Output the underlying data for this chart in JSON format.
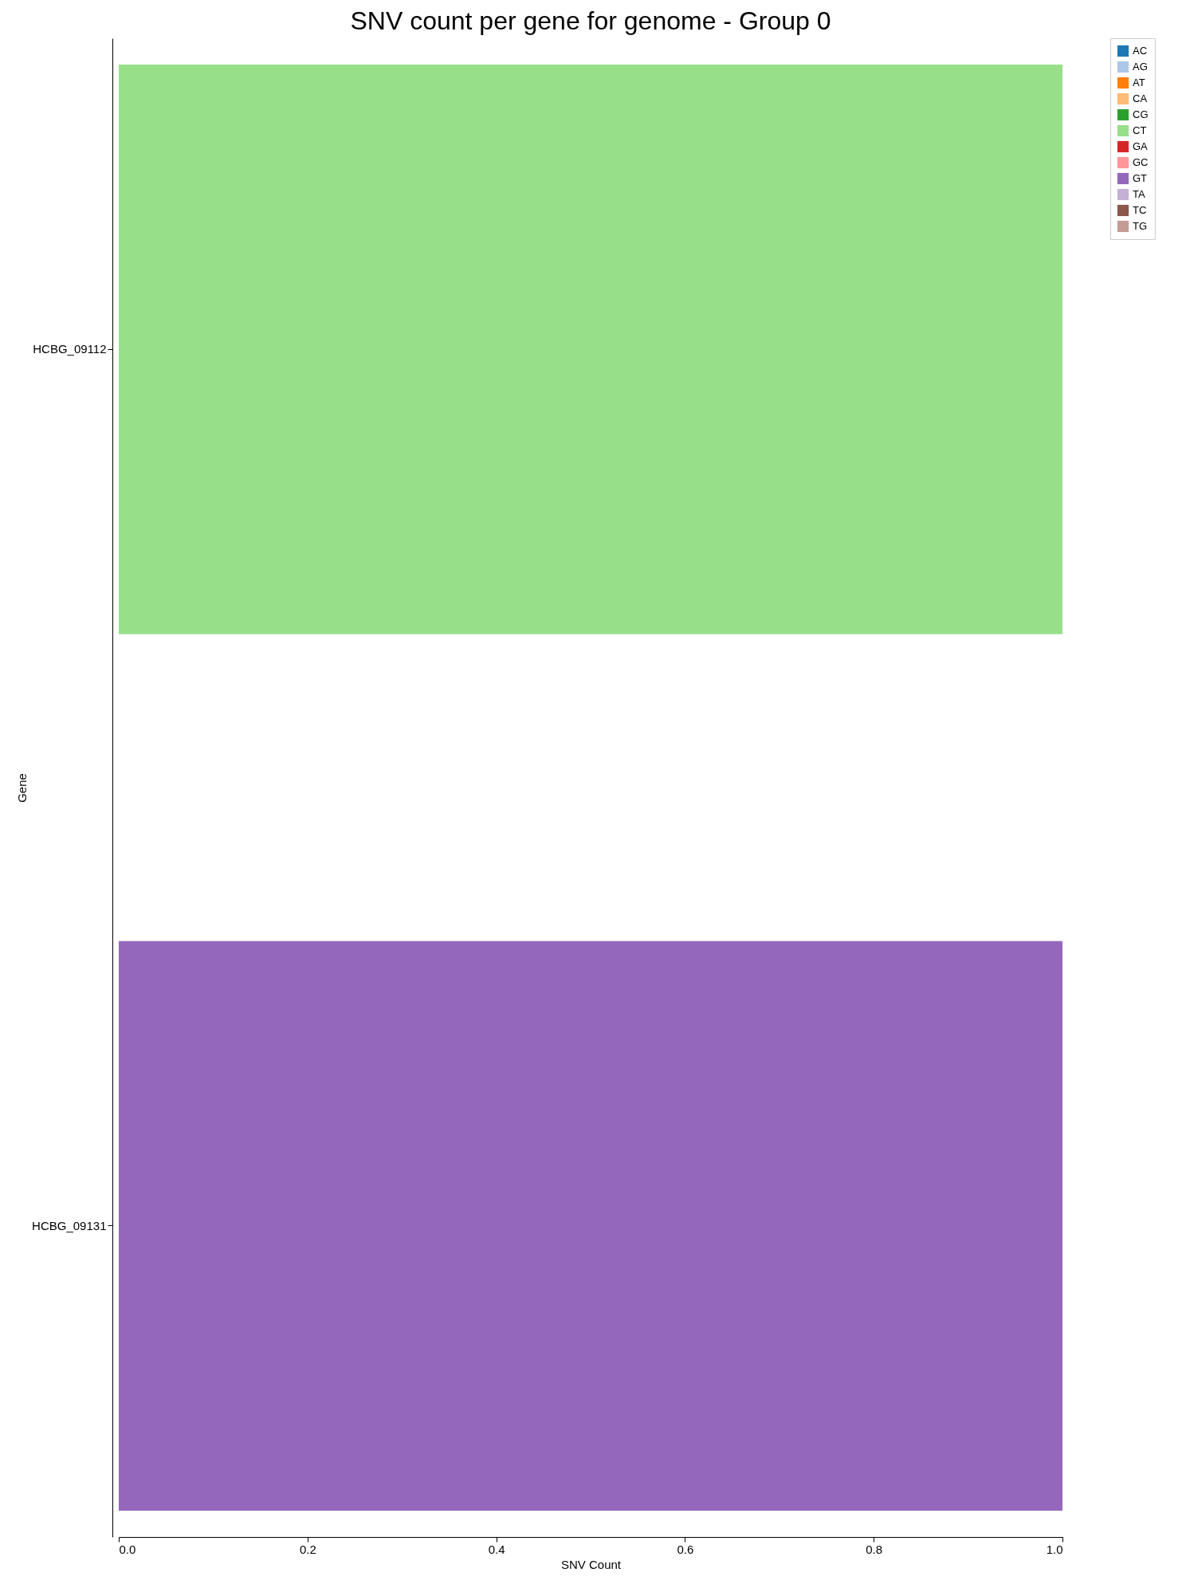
{
  "chart_data": {
    "type": "bar",
    "orientation": "horizontal",
    "stacked": true,
    "title": "SNV count per gene for genome - Group 0",
    "xlabel": "SNV Count",
    "ylabel": "Gene",
    "categories": [
      "HCBG_09112",
      "HCBG_09131"
    ],
    "series": [
      {
        "name": "AC",
        "color": "#1f77b4",
        "values": [
          0,
          0
        ]
      },
      {
        "name": "AG",
        "color": "#aec7e8",
        "values": [
          0,
          0
        ]
      },
      {
        "name": "AT",
        "color": "#ff7f0e",
        "values": [
          0,
          0
        ]
      },
      {
        "name": "CA",
        "color": "#ffbb78",
        "values": [
          0,
          0
        ]
      },
      {
        "name": "CG",
        "color": "#2ca02c",
        "values": [
          0,
          0
        ]
      },
      {
        "name": "CT",
        "color": "#98df8a",
        "values": [
          1,
          0
        ]
      },
      {
        "name": "GA",
        "color": "#d62728",
        "values": [
          0,
          0
        ]
      },
      {
        "name": "GC",
        "color": "#ff9896",
        "values": [
          0,
          0
        ]
      },
      {
        "name": "GT",
        "color": "#9467bd",
        "values": [
          0,
          1
        ]
      },
      {
        "name": "TA",
        "color": "#c5b0d5",
        "values": [
          0,
          0
        ]
      },
      {
        "name": "TC",
        "color": "#8c564b",
        "values": [
          0,
          0
        ]
      },
      {
        "name": "TG",
        "color": "#c49c94",
        "values": [
          0,
          0
        ]
      }
    ],
    "xlim": [
      0,
      1
    ],
    "xticks": [
      {
        "value": 0,
        "label": "0.0"
      },
      0.2,
      0.4,
      0.6,
      0.8,
      {
        "value": 1,
        "label": "1.0"
      }
    ],
    "grid": false,
    "legend": "top right"
  }
}
